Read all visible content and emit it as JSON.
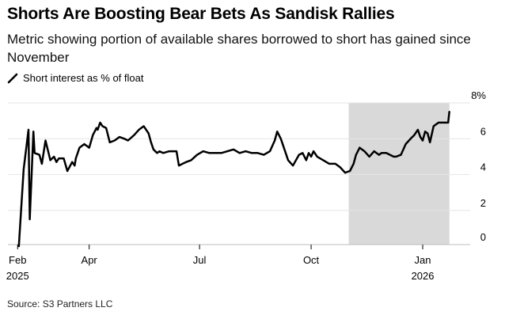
{
  "header": {
    "title": "Shorts Are Boosting Bear Bets As Sandisk Rallies",
    "subtitle": "Metric showing portion of available shares borrowed to short has gained since November"
  },
  "footer": {
    "source": "Source: S3 Partners LLC"
  },
  "chart_data": {
    "type": "line",
    "title": "Shorts Are Boosting Bear Bets As Sandisk Rallies",
    "subtitle": "Metric showing portion of available shares borrowed to short has gained since November",
    "xlabel": "",
    "ylabel": "",
    "ylim": [
      0,
      8
    ],
    "yticks": [
      {
        "value": 0,
        "label": "0"
      },
      {
        "value": 2,
        "label": "2"
      },
      {
        "value": 4,
        "label": "4"
      },
      {
        "value": 6,
        "label": "6"
      },
      {
        "value": 8,
        "label": "8%"
      }
    ],
    "xticks": [
      {
        "date": "2025-02-01",
        "label": "Feb",
        "sublabel": "2025"
      },
      {
        "date": "2025-04-01",
        "label": "Apr",
        "sublabel": ""
      },
      {
        "date": "2025-07-01",
        "label": "Jul",
        "sublabel": ""
      },
      {
        "date": "2025-10-01",
        "label": "Oct",
        "sublabel": ""
      },
      {
        "date": "2026-01-01",
        "label": "Jan",
        "sublabel": "2026"
      }
    ],
    "grid": "horizontal",
    "legend_position": "top-left",
    "shaded_region": {
      "start": "2025-11-01",
      "end": "2026-01-23"
    },
    "colors": {
      "line": "#000000",
      "shade": "#d9d9d9",
      "grid": "#e6e6e6",
      "text": "#000000"
    },
    "series": [
      {
        "name": "Short interest as % of float",
        "x": [
          "2025-02-02",
          "2025-02-06",
          "2025-02-10",
          "2025-02-11",
          "2025-02-14",
          "2025-02-15",
          "2025-02-19",
          "2025-02-21",
          "2025-02-24",
          "2025-02-28",
          "2025-03-03",
          "2025-03-05",
          "2025-03-07",
          "2025-03-11",
          "2025-03-14",
          "2025-03-18",
          "2025-03-20",
          "2025-03-21",
          "2025-03-24",
          "2025-03-28",
          "2025-04-01",
          "2025-04-04",
          "2025-04-07",
          "2025-04-08",
          "2025-04-10",
          "2025-04-12",
          "2025-04-15",
          "2025-04-18",
          "2025-04-22",
          "2025-04-26",
          "2025-04-30",
          "2025-05-03",
          "2025-05-08",
          "2025-05-12",
          "2025-05-16",
          "2025-05-20",
          "2025-05-22",
          "2025-05-24",
          "2025-05-27",
          "2025-05-29",
          "2025-06-01",
          "2025-06-06",
          "2025-06-12",
          "2025-06-14",
          "2025-06-17",
          "2025-06-20",
          "2025-06-24",
          "2025-06-29",
          "2025-07-04",
          "2025-07-09",
          "2025-07-14",
          "2025-07-19",
          "2025-07-24",
          "2025-07-29",
          "2025-08-03",
          "2025-08-08",
          "2025-08-13",
          "2025-08-18",
          "2025-08-23",
          "2025-08-28",
          "2025-09-01",
          "2025-09-03",
          "2025-09-06",
          "2025-09-09",
          "2025-09-12",
          "2025-09-16",
          "2025-09-21",
          "2025-09-24",
          "2025-09-27",
          "2025-09-29",
          "2025-10-01",
          "2025-10-03",
          "2025-10-06",
          "2025-10-11",
          "2025-10-16",
          "2025-10-21",
          "2025-10-25",
          "2025-10-29",
          "2025-11-02",
          "2025-11-05",
          "2025-11-07",
          "2025-11-10",
          "2025-11-14",
          "2025-11-18",
          "2025-11-22",
          "2025-11-26",
          "2025-11-28",
          "2025-12-02",
          "2025-12-05",
          "2025-12-08",
          "2025-12-10",
          "2025-12-14",
          "2025-12-18",
          "2025-12-22",
          "2025-12-25",
          "2025-12-28",
          "2025-12-30",
          "2026-01-01",
          "2026-01-03",
          "2026-01-05",
          "2026-01-07",
          "2026-01-10",
          "2026-01-14",
          "2026-01-17",
          "2026-01-19",
          "2026-01-22",
          "2026-01-23"
        ],
        "values": [
          0,
          4.3,
          6.5,
          1.5,
          6.4,
          5.2,
          5.1,
          4.6,
          5.9,
          4.8,
          5.0,
          4.7,
          4.9,
          4.9,
          4.2,
          4.7,
          4.5,
          4.9,
          5.5,
          5.7,
          5.5,
          6.2,
          6.6,
          6.5,
          6.9,
          6.7,
          6.6,
          5.8,
          5.9,
          6.1,
          6.0,
          5.9,
          6.2,
          6.5,
          6.7,
          6.3,
          5.8,
          5.4,
          5.2,
          5.3,
          5.2,
          5.3,
          5.3,
          4.5,
          4.6,
          4.7,
          4.8,
          5.1,
          5.3,
          5.2,
          5.2,
          5.2,
          5.3,
          5.4,
          5.2,
          5.3,
          5.2,
          5.2,
          5.1,
          5.3,
          5.9,
          6.4,
          6.0,
          5.4,
          4.8,
          4.5,
          5.1,
          5.2,
          4.8,
          5.2,
          5.0,
          5.3,
          5.0,
          4.8,
          4.6,
          4.6,
          4.4,
          4.1,
          4.2,
          4.6,
          5.1,
          5.5,
          5.3,
          5.0,
          5.3,
          5.1,
          5.2,
          5.2,
          5.1,
          5.0,
          5.0,
          5.1,
          5.7,
          6.0,
          6.2,
          6.5,
          6.1,
          5.9,
          6.4,
          6.3,
          5.8,
          6.7,
          6.9,
          6.9,
          6.9,
          6.9,
          7.5
        ]
      }
    ]
  }
}
